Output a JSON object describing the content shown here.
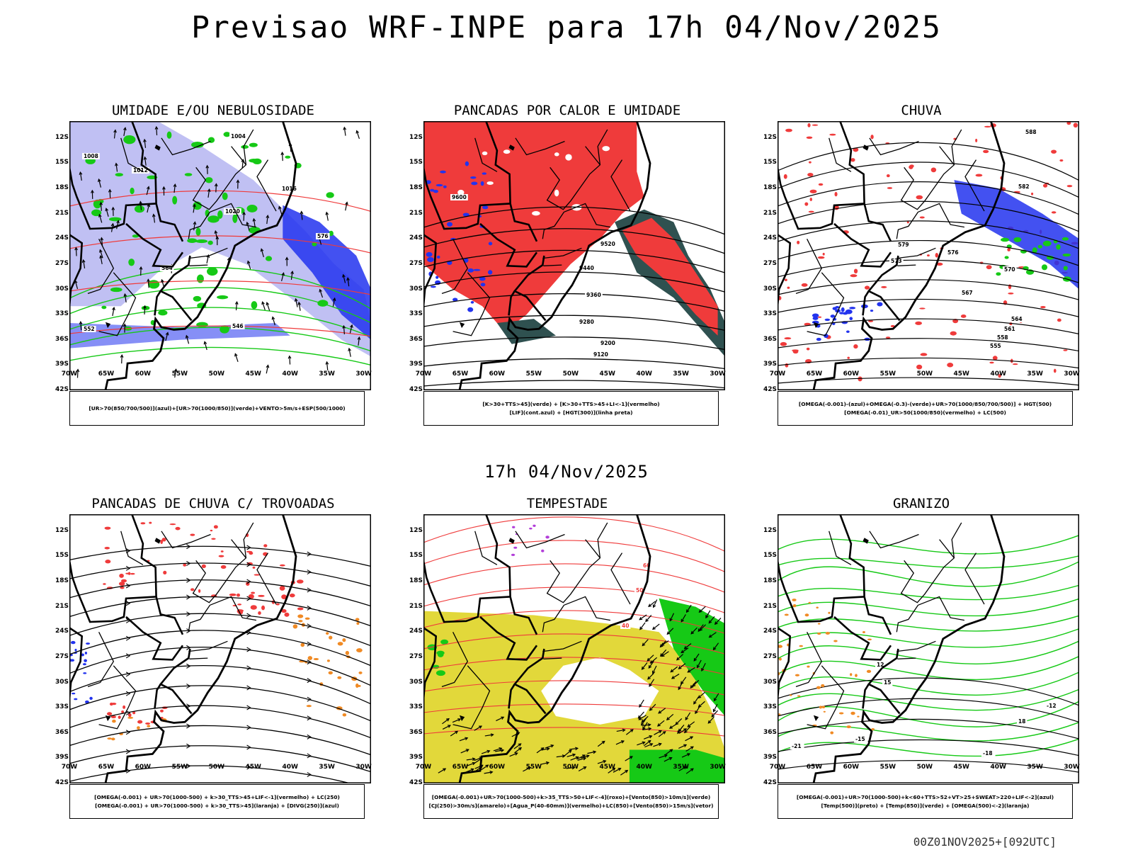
{
  "title": "Previsao WRF-INPE  para 17h 04/Nov/2025",
  "mid_date": "17h 04/Nov/2025",
  "footer": "00Z01NOV2025+[092UTC]",
  "axes": {
    "lat_labels": [
      "12S",
      "15S",
      "18S",
      "21S",
      "24S",
      "27S",
      "30S",
      "33S",
      "36S",
      "39S",
      "42S"
    ],
    "lon_labels": [
      "70W",
      "65W",
      "60W",
      "55W",
      "50W",
      "45W",
      "40W",
      "35W",
      "30W"
    ]
  },
  "colors": {
    "red": "#ef3b3b",
    "green": "#16c916",
    "blue": "#2233ee",
    "lightblue": "#b9b9f2",
    "teal": "#2f5150",
    "yellow": "#e2d83a",
    "orange": "#f08a24",
    "purple": "#b23ed9"
  },
  "panels": [
    {
      "title": "UMIDADE E/OU NEBULOSIDADE",
      "legend": [
        "[UR>70(850/700/500)](azul)+[UR>70(1000/850)](verde)+VENTO>5m/s+ESP(500/1000)"
      ],
      "contour_labels": [
        "1004",
        "1008",
        "1012",
        "1016",
        "1020",
        "576",
        "564",
        "552",
        "546"
      ]
    },
    {
      "title": "PANCADAS POR CALOR E UMIDADE",
      "legend": [
        "[K>30+TTS>45](verde)  +  [K>30+TTS>45+LI<-1](vermelho)",
        "[LIF](cont.azul)  +  [HGT(300)](linha preta)"
      ],
      "contour_labels": [
        "9600",
        "9520",
        "9440",
        "9360",
        "9280",
        "9200",
        "9120"
      ]
    },
    {
      "title": "CHUVA",
      "legend": [
        "[OMEGA(-0.001)-(azul)+OMEGA(-0.3)-(verde)+UR>70(1000/850/700/500)]  +  HGT(500)",
        "[OMEGA(-0.01)_UR>50(1000/850)(vermelho)  +  LC(500)"
      ],
      "contour_labels": [
        "588",
        "582",
        "579",
        "576",
        "573",
        "570",
        "567",
        "564",
        "561",
        "558",
        "555"
      ]
    },
    {
      "title": "PANCADAS DE CHUVA C/ TROVOADAS",
      "legend": [
        "[OMEGA(-0.001)  +  UR>70(1000-500)  +  k>30_TTS>45+LIF<-1](vermelho)  +  LC(250)",
        "[OMEGA(-0.001)  +  UR>70(1000-500)  +  k>30_TTS>45](laranja)  +  [DIVG(250)](azul)"
      ],
      "contour_labels": []
    },
    {
      "title": "TEMPESTADE",
      "legend": [
        "[OMEGA(-0.001)+UR>70(1000-500)+k>35_TTS>50+LIF<-4](roxo)+[Vento(850)>10m/s](verde)",
        "[CJ(250)>30m/s](amarelo)+[Agua_P(40-60mm)](vermelho)+LC(850)+[Vento(850)>15m/s](vetor)"
      ],
      "contour_labels": [
        "40",
        "50",
        "60"
      ]
    },
    {
      "title": "GRANIZO",
      "legend": [
        "[OMEGA(-0.001)+UR>70(1000-500)+k<60+TTS>52+VT>25+SWEAT>220+LIF<-2](azul)",
        "[Temp(500)](preto)  +  [Temp(850)](verde)  +  [OMEGA(500)<-2](laranja)"
      ],
      "contour_labels": [
        "-12",
        "-15",
        "-18",
        "-21",
        "12",
        "15",
        "18"
      ]
    }
  ]
}
